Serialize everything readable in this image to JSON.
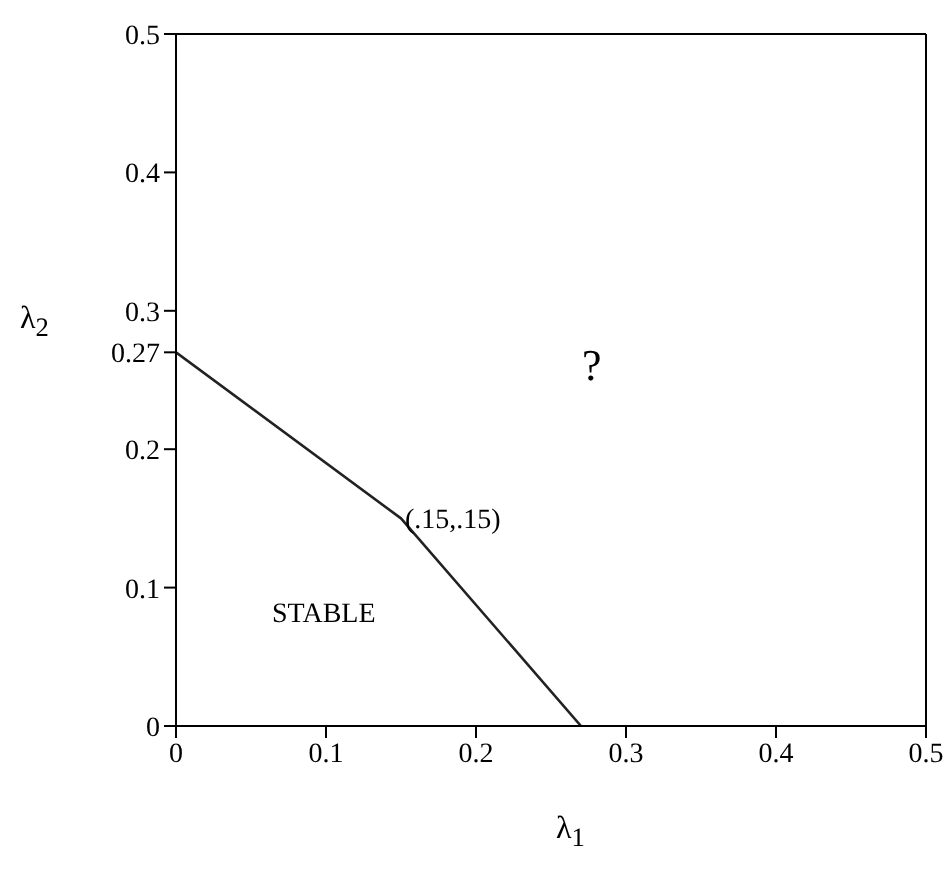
{
  "chart_data": {
    "type": "line",
    "xlabel": "λ$_{1}$",
    "ylabel": "λ$_{2}$",
    "x": [
      0,
      0.15,
      0.27
    ],
    "series": [
      {
        "color": "#222222",
        "values": [
          0.27,
          0.15,
          0
        ]
      }
    ],
    "xlim": [
      0,
      0.5
    ],
    "xticks": [
      0,
      0.1,
      0.2,
      0.3,
      0.4,
      0.5
    ],
    "ylim": [
      0,
      0.5
    ],
    "yticks": [
      0,
      0.1,
      0.2,
      0.27,
      0.3,
      0.4,
      0.5
    ],
    "marker": "none",
    "line_style": "solid",
    "grid": false,
    "legend": false,
    "annotations": [
      {
        "text": "(.15,.15)",
        "x": 0.15,
        "y": 0.15
      },
      "STABLE",
      "?"
    ]
  }
}
